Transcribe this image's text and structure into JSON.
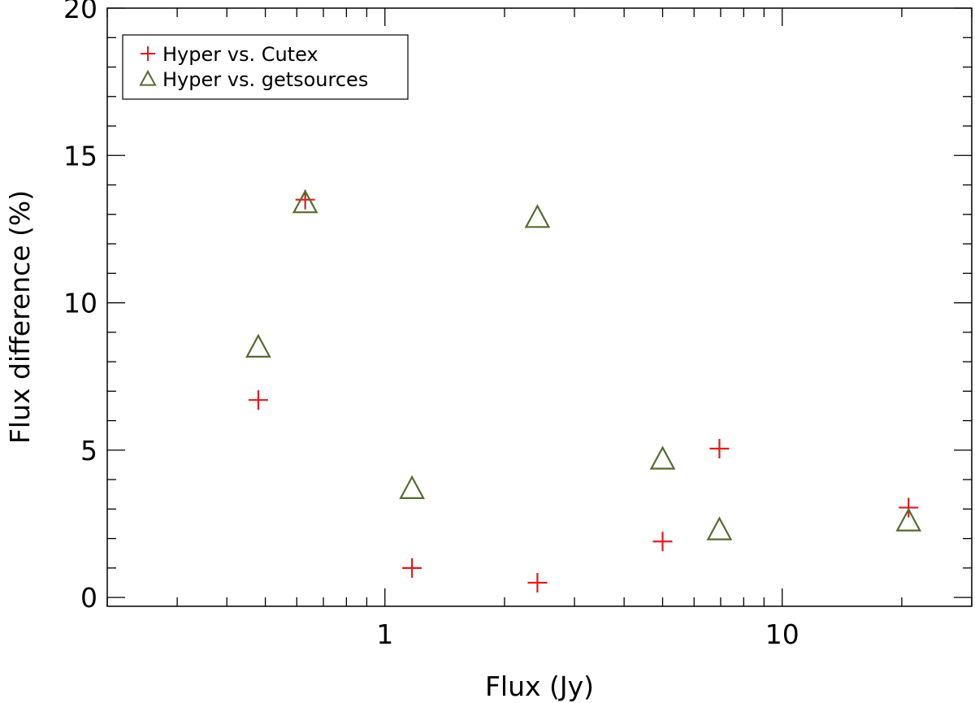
{
  "chart_data": {
    "type": "scatter",
    "title": "",
    "xlabel": "Flux (Jy)",
    "ylabel": "Flux difference (%)",
    "xscale": "log",
    "xlim": [
      0.2,
      30
    ],
    "ylim": [
      -0.3,
      20
    ],
    "x_ticks": [
      {
        "value": 1,
        "label": "1"
      },
      {
        "value": 10,
        "label": "10"
      }
    ],
    "y_ticks": [
      {
        "value": 0,
        "label": "0"
      },
      {
        "value": 5,
        "label": "5"
      },
      {
        "value": 10,
        "label": "10"
      },
      {
        "value": 15,
        "label": "15"
      },
      {
        "value": 20,
        "label": "20"
      }
    ],
    "grid": false,
    "legend_position": "top-left",
    "series": [
      {
        "name": "Hyper vs. Cutex",
        "marker": "plus",
        "color": "#e31a1c",
        "points": [
          {
            "x": 0.48,
            "y": 6.7
          },
          {
            "x": 0.63,
            "y": 13.5
          },
          {
            "x": 1.17,
            "y": 1.0
          },
          {
            "x": 2.42,
            "y": 0.5
          },
          {
            "x": 5.0,
            "y": 1.9
          },
          {
            "x": 6.95,
            "y": 5.05
          },
          {
            "x": 20.8,
            "y": 3.05
          }
        ]
      },
      {
        "name": "Hyper vs. getsources",
        "marker": "triangle",
        "color": "#556b2f",
        "points": [
          {
            "x": 0.48,
            "y": 8.5
          },
          {
            "x": 0.63,
            "y": 13.4
          },
          {
            "x": 1.17,
            "y": 3.7
          },
          {
            "x": 2.42,
            "y": 12.9
          },
          {
            "x": 5.0,
            "y": 4.7
          },
          {
            "x": 6.95,
            "y": 2.3
          },
          {
            "x": 20.8,
            "y": 2.6
          }
        ]
      }
    ]
  }
}
